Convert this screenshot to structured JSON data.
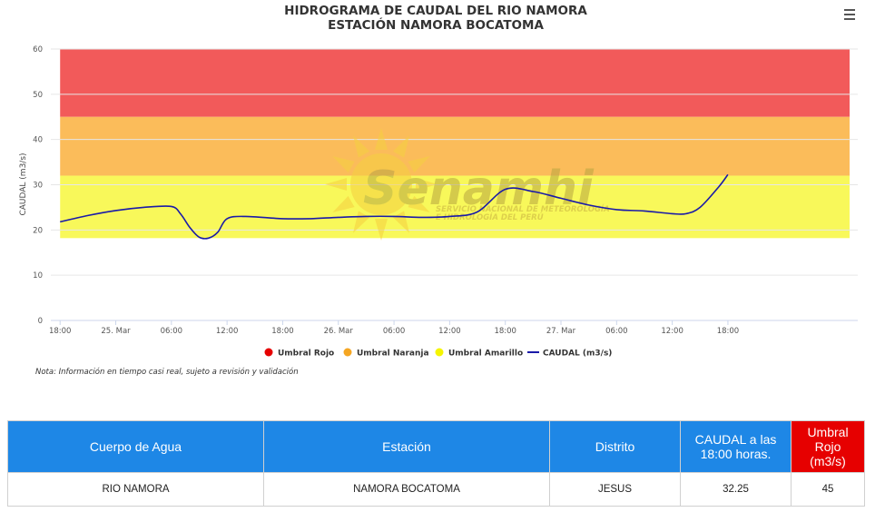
{
  "chart_data": {
    "type": "area",
    "title": "HIDROGRAMA DE CAUDAL DEL RIO NAMORA",
    "subtitle": "ESTACIÓN NAMORA BOCATOMA",
    "ylabel": "CAUDAL (m3/s)",
    "ylim": [
      0,
      60
    ],
    "yticks": [
      "0",
      "10",
      "20",
      "30",
      "40",
      "50",
      "60"
    ],
    "x_range_hours": [
      -1,
      86
    ],
    "xticks": [
      {
        "h": 0,
        "label": "18:00"
      },
      {
        "h": 6,
        "label": "25. Mar"
      },
      {
        "h": 12,
        "label": "06:00"
      },
      {
        "h": 18,
        "label": "12:00"
      },
      {
        "h": 24,
        "label": "18:00"
      },
      {
        "h": 30,
        "label": "26. Mar"
      },
      {
        "h": 36,
        "label": "06:00"
      },
      {
        "h": 42,
        "label": "12:00"
      },
      {
        "h": 48,
        "label": "18:00"
      },
      {
        "h": 54,
        "label": "27. Mar"
      },
      {
        "h": 60,
        "label": "06:00"
      },
      {
        "h": 66,
        "label": "12:00"
      },
      {
        "h": 72,
        "label": "18:00"
      }
    ],
    "thresholds": [
      {
        "name": "Umbral Rojo",
        "from": 45,
        "to": 60,
        "color": "#f25a5a"
      },
      {
        "name": "Umbral Naranja",
        "from": 32,
        "to": 45,
        "color": "#fbbc5a"
      },
      {
        "name": "Umbral Amarillo",
        "from": 18.2,
        "to": 32,
        "color": "#f8f85a"
      }
    ],
    "legend_markers": {
      "Umbral Rojo": "#e60000",
      "Umbral Naranja": "#f5a623",
      "Umbral Amarillo": "#f5f500"
    },
    "series": [
      {
        "name": "CAUDAL (m3/s)",
        "color": "#1a1aa8",
        "x": [
          0,
          3,
          6,
          9,
          12,
          13,
          14,
          15,
          16,
          17,
          18,
          20,
          24,
          27,
          30,
          33,
          36,
          39,
          42,
          45,
          48,
          51,
          54,
          57,
          60,
          63,
          66,
          67.5,
          69,
          71,
          72
        ],
        "y": [
          21.8,
          23.2,
          24.3,
          25.0,
          25.2,
          23.5,
          20.5,
          18.4,
          18.2,
          19.5,
          22.5,
          23.0,
          22.5,
          22.5,
          22.8,
          23.0,
          23.0,
          22.8,
          23.0,
          24.0,
          29.0,
          28.5,
          27.0,
          25.5,
          24.5,
          24.2,
          23.6,
          23.6,
          25.0,
          29.5,
          32.25
        ]
      }
    ],
    "legend": [
      "Umbral Rojo",
      "Umbral Naranja",
      "Umbral Amarillo",
      "CAUDAL (m3/s)"
    ]
  },
  "watermark": {
    "name": "Senamhi",
    "tagline_1": "SERVICIO NACIONAL DE METEOROLOGÍA",
    "tagline_2": "E HIDROLOGÍA DEL PERÚ"
  },
  "note": "Nota: Información en tiempo casi real, sujeto a revisión y validación",
  "table": {
    "headers": [
      "Cuerpo de Agua",
      "Estación",
      "Distrito",
      "CAUDAL a las 18:00 horas.",
      "Umbral Rojo (m3/s)"
    ],
    "row": [
      "RIO NAMORA",
      "NAMORA BOCATOMA",
      "JESUS",
      "32.25",
      "45"
    ]
  }
}
